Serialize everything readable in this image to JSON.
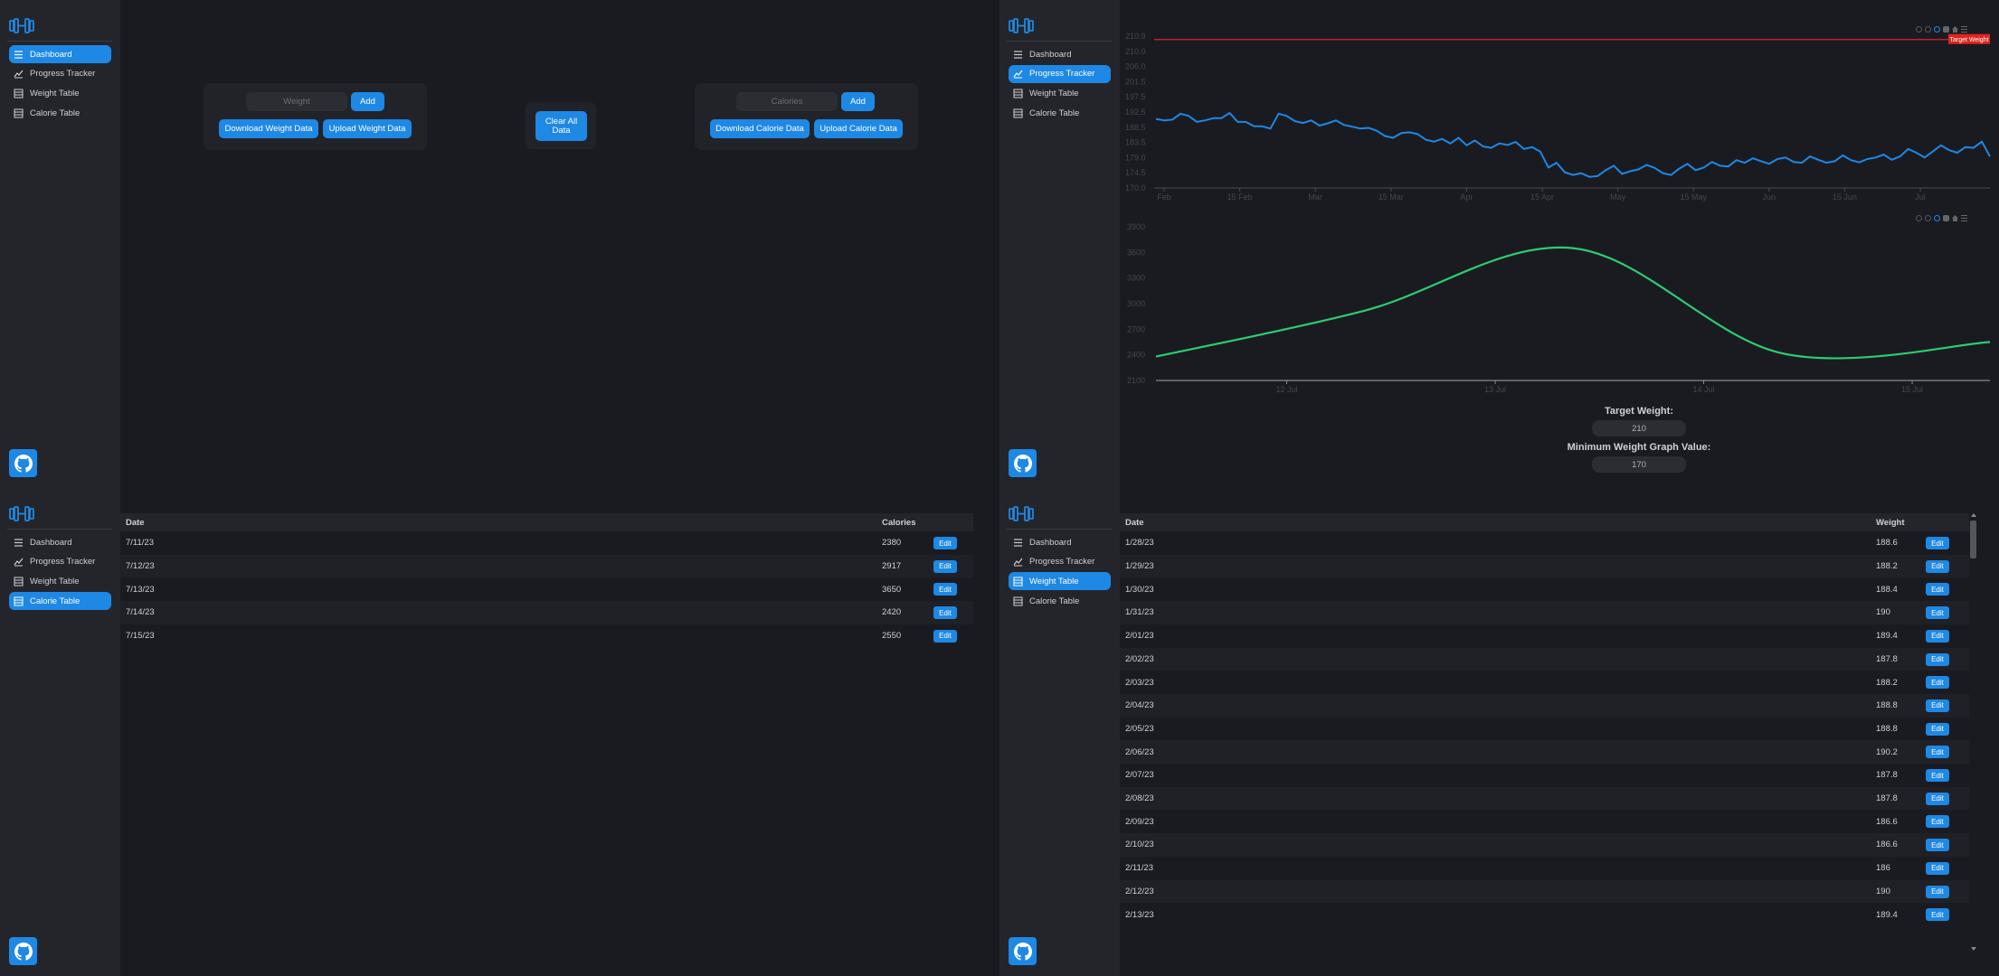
{
  "sidebar": {
    "items": [
      {
        "label": "Dashboard",
        "icon": "dashboard-icon"
      },
      {
        "label": "Progress Tracker",
        "icon": "chart-icon"
      },
      {
        "label": "Weight Table",
        "icon": "table-icon"
      },
      {
        "label": "Calorie Table",
        "icon": "table-icon"
      }
    ],
    "logo_icon": "dumbbell-icon",
    "github_icon": "github-icon"
  },
  "dashboard": {
    "weight_placeholder": "Weight",
    "add_label": "Add",
    "download_weight": "Download Weight Data",
    "upload_weight": "Upload Weight Data",
    "clear_all": "Clear All Data",
    "calories_placeholder": "Calories",
    "download_calorie": "Download Calorie Data",
    "upload_calorie": "Upload Calorie Data"
  },
  "calorie_table": {
    "headers": [
      "Date",
      "Calories"
    ],
    "edit_label": "Edit",
    "rows": [
      {
        "date": "7/11/23",
        "calories": "2380"
      },
      {
        "date": "7/12/23",
        "calories": "2917"
      },
      {
        "date": "7/13/23",
        "calories": "3650"
      },
      {
        "date": "7/14/23",
        "calories": "2420"
      },
      {
        "date": "7/15/23",
        "calories": "2550"
      }
    ]
  },
  "weight_table": {
    "headers": [
      "Date",
      "Weight"
    ],
    "edit_label": "Edit",
    "rows": [
      {
        "date": "1/28/23",
        "weight": "188.6"
      },
      {
        "date": "1/29/23",
        "weight": "188.2"
      },
      {
        "date": "1/30/23",
        "weight": "188.4"
      },
      {
        "date": "1/31/23",
        "weight": "190"
      },
      {
        "date": "2/01/23",
        "weight": "189.4"
      },
      {
        "date": "2/02/23",
        "weight": "187.8"
      },
      {
        "date": "2/03/23",
        "weight": "188.2"
      },
      {
        "date": "2/04/23",
        "weight": "188.8"
      },
      {
        "date": "2/05/23",
        "weight": "188.8"
      },
      {
        "date": "2/06/23",
        "weight": "190.2"
      },
      {
        "date": "2/07/23",
        "weight": "187.8"
      },
      {
        "date": "2/08/23",
        "weight": "187.8"
      },
      {
        "date": "2/09/23",
        "weight": "186.6"
      },
      {
        "date": "2/10/23",
        "weight": "186.6"
      },
      {
        "date": "2/11/23",
        "weight": "186"
      },
      {
        "date": "2/12/23",
        "weight": "190"
      },
      {
        "date": "2/13/23",
        "weight": "189.4"
      }
    ]
  },
  "progress": {
    "target_weight_label": "Target Weight:",
    "target_weight_value": "210",
    "min_weight_label": "Minimum Weight Graph Value:",
    "min_weight_value": "170",
    "target_annotation": "Target Weight"
  },
  "colors": {
    "accent": "#1e88e5",
    "weight_line": "#1e88e5",
    "calorie_line": "#2ecc71",
    "target_line": "#cc1f1f"
  },
  "chart_data": [
    {
      "type": "line",
      "title": "",
      "xlabel": "",
      "ylabel": "",
      "ylim": [
        170,
        210.9
      ],
      "yticks": [
        "210.9",
        "210.0",
        "206.0",
        "201.5",
        "197.5",
        "192.5",
        "188.5",
        "183.5",
        "179.0",
        "174.5",
        "170.0"
      ],
      "xticks": [
        "Feb",
        "15 Feb",
        "Mar",
        "15 Mar",
        "Apr",
        "15 Apr",
        "May",
        "15 May",
        "Jun",
        "15 Jun",
        "Jul"
      ],
      "target_line": 210,
      "series": [
        {
          "values": [
            188.6,
            188.2,
            188.4,
            190,
            189.4,
            187.8,
            188.2,
            188.8,
            188.8,
            190.2,
            187.8,
            187.8,
            186.6,
            186.6,
            186,
            190,
            189.4,
            188,
            187.5,
            188.2,
            186.8,
            187.4,
            188.2,
            187,
            186.5,
            186,
            186.2,
            185.4,
            184,
            183.5,
            184.8,
            185,
            184.5,
            183,
            182.5,
            183.2,
            182,
            183.5,
            181.5,
            182.8,
            181.2,
            180.8,
            182,
            181.6,
            182.4,
            180.5,
            181,
            179.8,
            175.5,
            176.8,
            174.2,
            173.5,
            174,
            173,
            173.2,
            174.8,
            176,
            173.8,
            174.5,
            175,
            176.2,
            175.4,
            174,
            173.5,
            175.2,
            176.5,
            174.8,
            175.5,
            177,
            176,
            175.8,
            177.5,
            176.8,
            178,
            177.2,
            176.5,
            177.8,
            178.2,
            177,
            176.8,
            178.5,
            177.6,
            176.8,
            177.2,
            178.8,
            177.5,
            176.9,
            177.8,
            178.2,
            179,
            177.6,
            178.5,
            180.5,
            179.5,
            178.2,
            179.8,
            181.5,
            180.2,
            179.5,
            181,
            180.8,
            182.5,
            178.5
          ]
        }
      ]
    },
    {
      "type": "line",
      "title": "",
      "xlabel": "",
      "ylabel": "",
      "ylim": [
        2100,
        3900
      ],
      "yticks": [
        "3900",
        "3600",
        "3300",
        "3000",
        "2700",
        "2400",
        "2100"
      ],
      "xticks": [
        "12 Jul",
        "13 Jul",
        "14 Jul",
        "15 Jul"
      ],
      "x": [
        "7/11/23",
        "7/12/23",
        "7/13/23",
        "7/14/23",
        "7/15/23"
      ],
      "series": [
        {
          "values": [
            2380,
            2917,
            3650,
            2420,
            2550
          ]
        }
      ]
    }
  ]
}
